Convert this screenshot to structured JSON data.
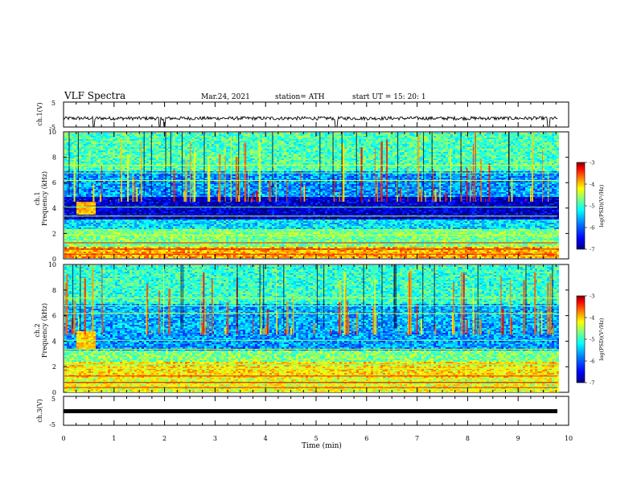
{
  "header": {
    "title": "VLF Spectra",
    "date": "Mar.24, 2021",
    "station": "station= ATH",
    "start": "start  UT =   15: 20: 1"
  },
  "colors": {
    "colormap": [
      "#00007f",
      "#0000ff",
      "#007fff",
      "#00ffff",
      "#7fff7f",
      "#ffff00",
      "#ff7f00",
      "#ff0000",
      "#7f0000"
    ],
    "trace": "#000000"
  },
  "chart_data": [
    {
      "type": "line",
      "panel": "ch1-waveform",
      "ylabel": "ch.1(V)",
      "ylim": [
        -5,
        5
      ],
      "yticks": [
        "5",
        "-5"
      ],
      "xlim": [
        0,
        10
      ],
      "baseline_v": -1.5,
      "note_spikes_at_min": [
        0.6,
        1.9,
        2.0,
        5.4,
        9.6
      ]
    },
    {
      "type": "heatmap",
      "panel": "ch1-spectrogram",
      "ylabel": "ch.1\nFrequency (kHz)",
      "ylabel_line1": "ch.1",
      "ylabel_line2": "Frequency (kHz)",
      "ylim": [
        0,
        10
      ],
      "yticks": [
        "0",
        "2",
        "4",
        "6",
        "8",
        "10"
      ],
      "xlim": [
        0,
        9.8
      ],
      "colorbar": {
        "label": "log(PSD)(V²/Hz)",
        "range": [
          -7,
          -3
        ],
        "ticks": [
          "-3",
          "-4",
          "-5",
          "-6",
          "-7"
        ]
      },
      "bands_khz": [
        {
          "from": 0.0,
          "to": 1.0,
          "level": -4.2
        },
        {
          "from": 1.0,
          "to": 2.4,
          "level": -5.0
        },
        {
          "from": 2.4,
          "to": 3.2,
          "level": -5.6
        },
        {
          "from": 3.2,
          "to": 5.0,
          "level": -6.7
        },
        {
          "from": 5.0,
          "to": 7.0,
          "level": -5.9
        },
        {
          "from": 7.0,
          "to": 10.0,
          "level": -5.2
        }
      ],
      "burst": {
        "t_from": 0.25,
        "t_to": 0.6,
        "f_from": 3.5,
        "f_to": 4.5,
        "level": -4.2
      }
    },
    {
      "type": "heatmap",
      "panel": "ch2-spectrogram",
      "ylabel_line1": "ch.2",
      "ylabel_line2": "Frequency (kHz)",
      "ylim": [
        0,
        10
      ],
      "yticks": [
        "0",
        "2",
        "4",
        "6",
        "8",
        "10"
      ],
      "xlim": [
        0,
        9.8
      ],
      "colorbar": {
        "label": "log(PSD)(V²/Hz)",
        "range": [
          -7,
          -3
        ],
        "ticks": [
          "-3",
          "-4",
          "-5",
          "-6",
          "-7"
        ]
      },
      "bands_khz": [
        {
          "from": 0.0,
          "to": 1.2,
          "level": -4.6
        },
        {
          "from": 1.2,
          "to": 2.4,
          "level": -4.4
        },
        {
          "from": 2.4,
          "to": 3.3,
          "level": -5.0
        },
        {
          "from": 3.3,
          "to": 5.0,
          "level": -5.9
        },
        {
          "from": 5.0,
          "to": 7.0,
          "level": -5.8
        },
        {
          "from": 7.0,
          "to": 10.0,
          "level": -5.3
        }
      ],
      "burst": {
        "t_from": 0.25,
        "t_to": 0.6,
        "f_from": 3.5,
        "f_to": 4.8,
        "level": -4.3
      }
    },
    {
      "type": "line",
      "panel": "ch3-waveform",
      "ylabel": "ch.3(V)",
      "ylim": [
        -5,
        5
      ],
      "yticks": [
        "5",
        "-5"
      ],
      "xlim": [
        0,
        10
      ],
      "baseline_v": -1.0,
      "xlabel": "Time (min)",
      "xticks": [
        "0",
        "1",
        "2",
        "3",
        "4",
        "5",
        "6",
        "7",
        "8",
        "9",
        "10"
      ]
    }
  ]
}
